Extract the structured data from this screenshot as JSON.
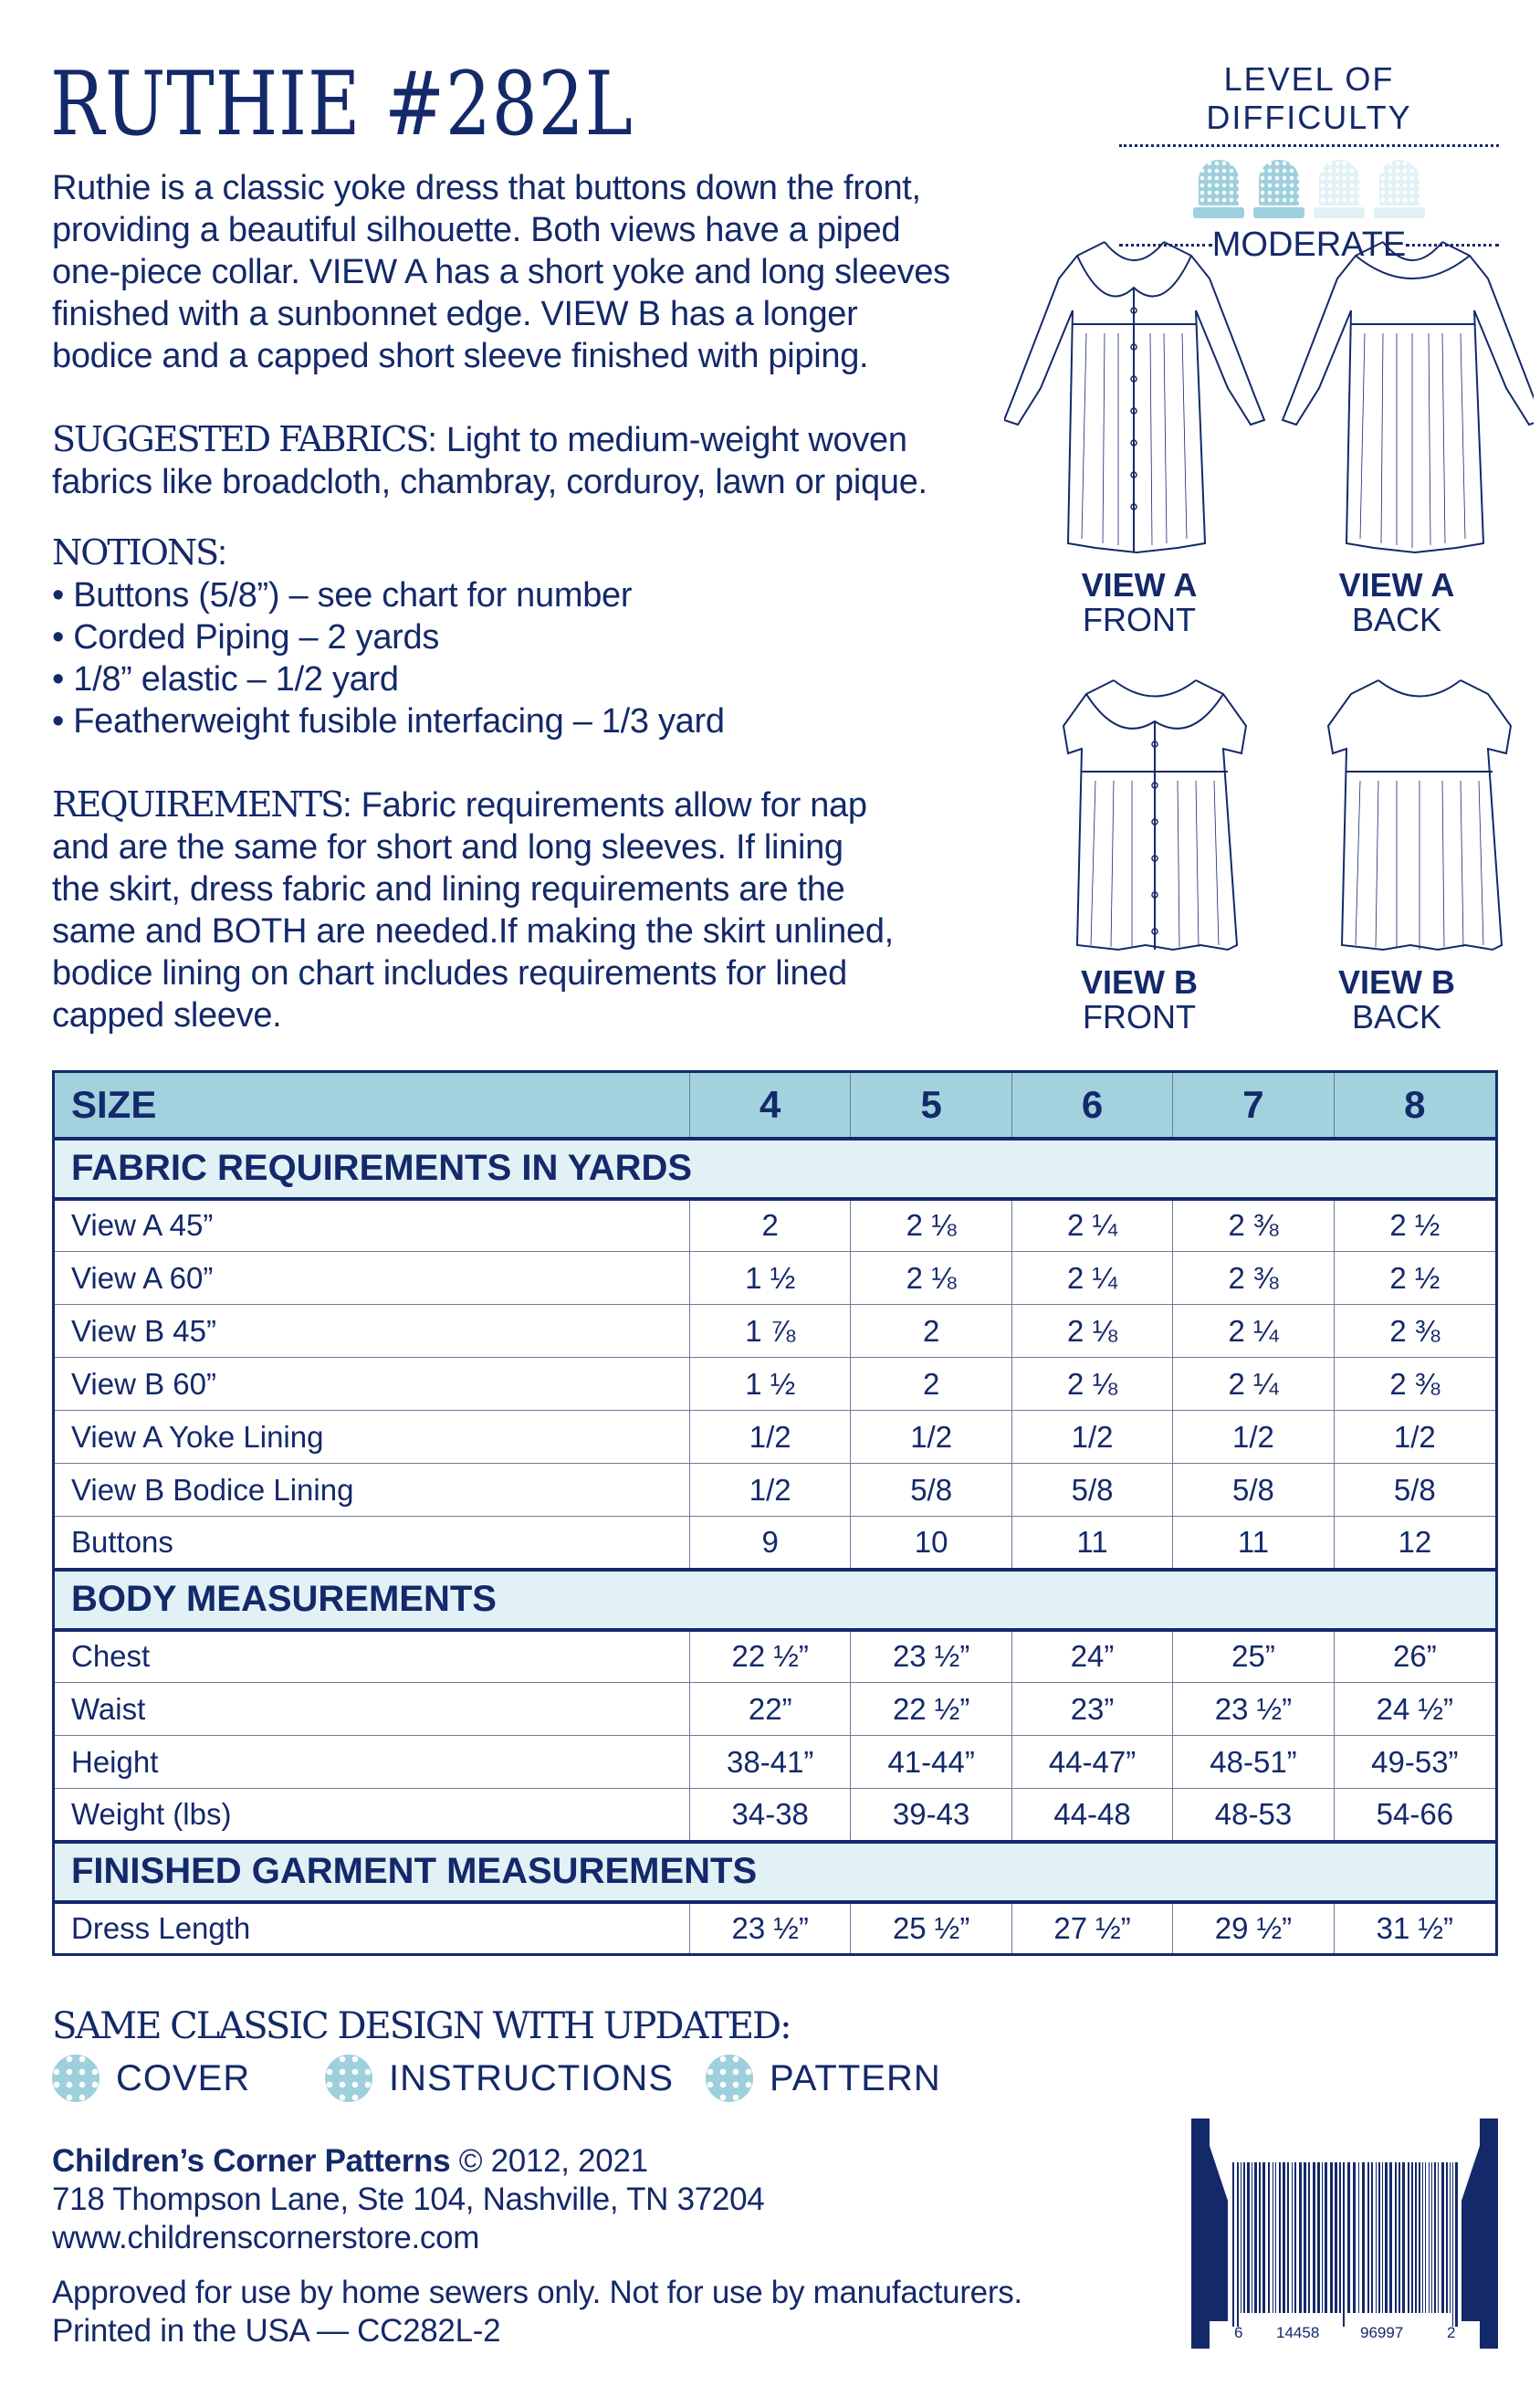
{
  "title": "RUTHIE #282L",
  "difficulty": {
    "label": "LEVEL OF DIFFICULTY",
    "level": "MODERATE",
    "filled": 2,
    "total": 4,
    "filled_color": "#9dd0dc",
    "empty_color": "#e2f1f5"
  },
  "description": [
    "Ruthie is a classic yoke dress that buttons down the front,",
    "providing a beautiful silhouette. Both views have a piped",
    "one-piece collar. VIEW A has a short yoke and long sleeves",
    "finished with a sunbonnet edge. VIEW B has a longer",
    "bodice and a capped short sleeve finished with piping."
  ],
  "fabrics": {
    "label": "SUGGESTED FABRICS",
    "lines": [
      ": Light to medium-weight woven",
      "fabrics like broadcloth, chambray, corduroy, lawn or pique."
    ]
  },
  "notions": {
    "label": "NOTIONS",
    "items": [
      "• Buttons (5/8”) – see chart for number",
      "• Corded Piping – 2 yards",
      "• 1/8” elastic – 1/2 yard",
      "• Featherweight fusible interfacing – 1/3 yard"
    ]
  },
  "requirements": {
    "label": "REQUIREMENTS",
    "lines": [
      ": Fabric requirements allow for nap",
      "and are the same for short and long sleeves. If  lining",
      "the skirt, dress fabric and lining requirements are the",
      "same and BOTH are needed.If  making the skirt unlined,",
      "bodice lining on chart includes requirements for lined",
      "capped sleeve."
    ]
  },
  "views": [
    {
      "view": "VIEW A",
      "side": "FRONT"
    },
    {
      "view": "VIEW A",
      "side": "BACK"
    },
    {
      "view": "VIEW B",
      "side": "FRONT"
    },
    {
      "view": "VIEW B",
      "side": "BACK"
    }
  ],
  "table": {
    "size_label": "SIZE",
    "sizes": [
      "4",
      "5",
      "6",
      "7",
      "8"
    ],
    "sections": [
      {
        "title": "FABRIC REQUIREMENTS IN YARDS",
        "rows": [
          [
            "View A 45”",
            "2",
            "2 ⅛",
            "2 ¼",
            "2 ⅜",
            "2 ½"
          ],
          [
            "View A 60”",
            "1 ½",
            "2 ⅛",
            "2 ¼",
            "2 ⅜",
            "2 ½"
          ],
          [
            "View B 45”",
            "1 ⅞",
            "2",
            "2 ⅛",
            "2 ¼",
            "2 ⅜"
          ],
          [
            "View B 60”",
            "1 ½",
            "2",
            "2 ⅛",
            "2 ¼",
            "2 ⅜"
          ],
          [
            "View A Yoke Lining",
            "1/2",
            "1/2",
            "1/2",
            "1/2",
            "1/2"
          ],
          [
            "View B Bodice Lining",
            "1/2",
            "5/8",
            "5/8",
            "5/8",
            "5/8"
          ],
          [
            "Buttons",
            "9",
            "10",
            "11",
            "11",
            "12"
          ]
        ]
      },
      {
        "title": "BODY MEASUREMENTS",
        "rows": [
          [
            "Chest",
            "22 ½”",
            "23 ½”",
            "24”",
            "25”",
            "26”"
          ],
          [
            "Waist",
            "22”",
            "22 ½”",
            "23”",
            "23 ½”",
            "24 ½”"
          ],
          [
            "Height",
            "38-41”",
            "41-44”",
            "44-47”",
            "48-51”",
            "49-53”"
          ],
          [
            "Weight (lbs)",
            "34-38",
            "39-43",
            "44-48",
            "48-53",
            "54-66"
          ]
        ]
      },
      {
        "title": "FINISHED GARMENT MEASUREMENTS",
        "rows": [
          [
            "Dress Length",
            "23 ½”",
            "25 ½”",
            "27 ½”",
            "29 ½”",
            "31 ½”"
          ]
        ]
      }
    ]
  },
  "updated": {
    "heading": "SAME CLASSIC DESIGN WITH UPDATED:",
    "items": [
      "COVER",
      "INSTRUCTIONS",
      "PATTERN"
    ]
  },
  "footer": {
    "company": "Children’s Corner Patterns",
    "copyright": " © 2012, 2021",
    "address": "718 Thompson Lane, Ste 104, Nashville, TN 37204",
    "website": "www.childrenscornerstore.com",
    "approved": "Approved for use by home sewers only. Not for use by manufacturers.",
    "printed": "Printed in the USA — CC282L-2"
  },
  "barcode": {
    "digits": [
      "6",
      "14458",
      "96997",
      "2"
    ]
  },
  "colors": {
    "navy": "#14296a",
    "header_blue": "#a3d2df",
    "section_blue": "#e1f1f6"
  }
}
